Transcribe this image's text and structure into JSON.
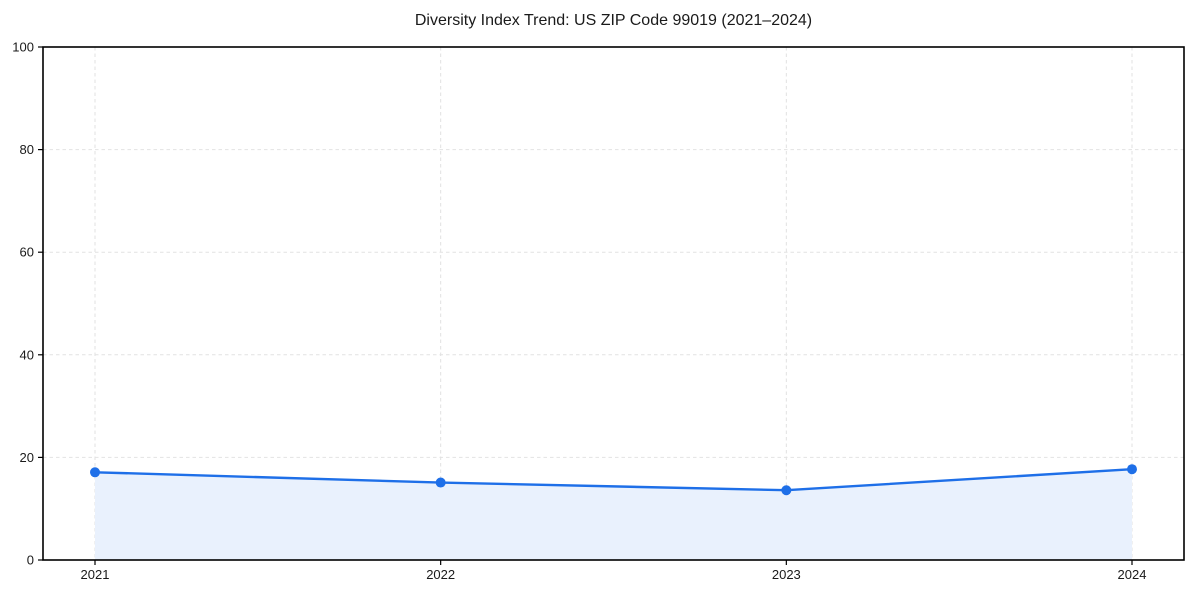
{
  "chart_data": {
    "type": "line",
    "title": "Diversity Index Trend: US ZIP Code 99019 (2021–2024)",
    "categories": [
      "2021",
      "2022",
      "2023",
      "2024"
    ],
    "series": [
      {
        "name": "Diversity Index",
        "values": [
          17.1,
          15.1,
          13.6,
          17.7
        ]
      }
    ],
    "xlabel": "",
    "ylabel": "",
    "ylim": [
      0,
      100
    ],
    "yticks": [
      0,
      20,
      40,
      60,
      80,
      100
    ],
    "grid": true,
    "grid_style": "dashed",
    "legend_position": "none",
    "marker": "circle",
    "area_fill": true,
    "colors": {
      "line": "#1e6fe8",
      "marker": "#1e6fe8",
      "area": "#e9f1fd",
      "grid": "#e2e2e2",
      "axis": "#000000",
      "text": "#1a1a1a"
    }
  }
}
